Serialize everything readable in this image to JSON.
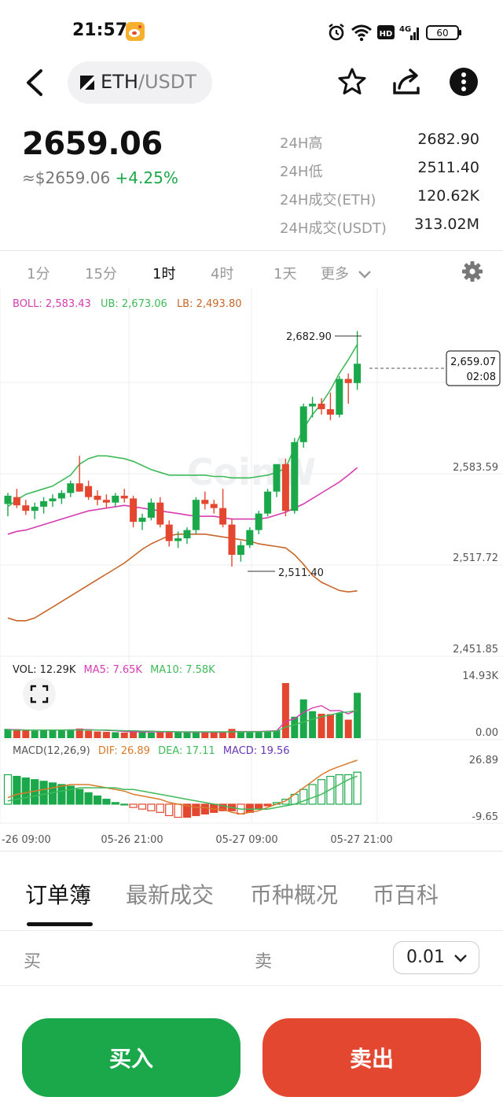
{
  "status_bar": {
    "time": "21:57",
    "battery": "60",
    "network": "4G",
    "hd": "HD"
  },
  "header": {
    "pair_base": "ETH",
    "pair_quote": "/USDT",
    "icons": [
      "back-icon",
      "star-icon",
      "share-icon",
      "more-icon"
    ]
  },
  "ticker": {
    "price": "2659.06",
    "usd_price": "≈$2659.06",
    "change": "+4.25%",
    "stats": [
      {
        "label": "24H高",
        "value": "2682.90"
      },
      {
        "label": "24H低",
        "value": "2511.40"
      },
      {
        "label": "24H成交(ETH)",
        "value": "120.62K"
      },
      {
        "label": "24H成交(USDT)",
        "value": "313.02M"
      }
    ]
  },
  "timeframes": {
    "items": [
      "1分",
      "15分",
      "1时",
      "4时",
      "1天",
      "更多"
    ],
    "active": "1时"
  },
  "chart_data": {
    "type": "candlestick",
    "colors": {
      "up": "#1aa84a",
      "down": "#e4472f",
      "boll": "#d63cb0",
      "ub": "#3fba5a",
      "lb": "#c8662a",
      "dif": "#d97a2b",
      "dea": "#3fba5a",
      "macd": "#6a36b8"
    },
    "boll_label": "BOLL: 2,583.43",
    "ub_label": "UB: 2,673.06",
    "lb_label": "LB: 2,493.80",
    "high_marker": "2,682.90",
    "low_marker": "2,511.40",
    "last_price": "2,659.07",
    "countdown": "02:08",
    "price_ticks": [
      "2,583.59",
      "2,517.72",
      "2,451.85"
    ],
    "price_tick_values": [
      2583.59,
      2517.72,
      2451.85
    ],
    "vol_label": "VOL: 12.29K",
    "ma5_label": "MA5: 7.65K",
    "ma10_label": "MA10: 7.58K",
    "vol_ticks": [
      "14.93K",
      "0.00"
    ],
    "macd_label": "MACD(12,26,9)",
    "dif_label": "DIF: 26.89",
    "dea_label": "DEA: 17.11",
    "macd_val_label": "MACD: 19.56",
    "macd_ticks": [
      "26.89",
      "-9.65"
    ],
    "x_labels": [
      "-26 09:00",
      "05-26 21:00",
      "05-27 09:00",
      "05-27 21:00"
    ],
    "watermark": "CoinW",
    "candles": [
      {
        "o": 2557,
        "h": 2565,
        "l": 2548,
        "c": 2563
      },
      {
        "o": 2562,
        "h": 2568,
        "l": 2554,
        "c": 2556
      },
      {
        "o": 2556,
        "h": 2560,
        "l": 2549,
        "c": 2552
      },
      {
        "o": 2552,
        "h": 2558,
        "l": 2546,
        "c": 2555
      },
      {
        "o": 2555,
        "h": 2562,
        "l": 2550,
        "c": 2559
      },
      {
        "o": 2559,
        "h": 2564,
        "l": 2555,
        "c": 2561
      },
      {
        "o": 2561,
        "h": 2567,
        "l": 2557,
        "c": 2565
      },
      {
        "o": 2565,
        "h": 2574,
        "l": 2562,
        "c": 2572
      },
      {
        "o": 2572,
        "h": 2592,
        "l": 2566,
        "c": 2566
      },
      {
        "o": 2570,
        "h": 2574,
        "l": 2560,
        "c": 2562
      },
      {
        "o": 2563,
        "h": 2567,
        "l": 2556,
        "c": 2560
      },
      {
        "o": 2560,
        "h": 2564,
        "l": 2554,
        "c": 2558
      },
      {
        "o": 2558,
        "h": 2565,
        "l": 2555,
        "c": 2563
      },
      {
        "o": 2563,
        "h": 2568,
        "l": 2558,
        "c": 2561
      },
      {
        "o": 2561,
        "h": 2563,
        "l": 2540,
        "c": 2544
      },
      {
        "o": 2544,
        "h": 2550,
        "l": 2538,
        "c": 2547
      },
      {
        "o": 2547,
        "h": 2561,
        "l": 2545,
        "c": 2558
      },
      {
        "o": 2558,
        "h": 2562,
        "l": 2540,
        "c": 2542
      },
      {
        "o": 2542,
        "h": 2545,
        "l": 2526,
        "c": 2530
      },
      {
        "o": 2530,
        "h": 2537,
        "l": 2525,
        "c": 2532
      },
      {
        "o": 2532,
        "h": 2540,
        "l": 2528,
        "c": 2538
      },
      {
        "o": 2538,
        "h": 2562,
        "l": 2535,
        "c": 2560
      },
      {
        "o": 2560,
        "h": 2566,
        "l": 2553,
        "c": 2557
      },
      {
        "o": 2557,
        "h": 2560,
        "l": 2550,
        "c": 2554
      },
      {
        "o": 2554,
        "h": 2568,
        "l": 2540,
        "c": 2542
      },
      {
        "o": 2542,
        "h": 2546,
        "l": 2511.4,
        "c": 2520
      },
      {
        "o": 2520,
        "h": 2530,
        "l": 2515,
        "c": 2527
      },
      {
        "o": 2527,
        "h": 2540,
        "l": 2525,
        "c": 2538
      },
      {
        "o": 2538,
        "h": 2552,
        "l": 2535,
        "c": 2550
      },
      {
        "o": 2550,
        "h": 2568,
        "l": 2548,
        "c": 2566
      },
      {
        "o": 2566,
        "h": 2586,
        "l": 2562,
        "c": 2586
      },
      {
        "o": 2586,
        "h": 2590,
        "l": 2548,
        "c": 2552
      },
      {
        "o": 2552,
        "h": 2605,
        "l": 2550,
        "c": 2602
      },
      {
        "o": 2602,
        "h": 2630,
        "l": 2598,
        "c": 2628
      },
      {
        "o": 2628,
        "h": 2635,
        "l": 2620,
        "c": 2630
      },
      {
        "o": 2630,
        "h": 2634,
        "l": 2622,
        "c": 2626
      },
      {
        "o": 2626,
        "h": 2638,
        "l": 2618,
        "c": 2622
      },
      {
        "o": 2622,
        "h": 2650,
        "l": 2620,
        "c": 2648
      },
      {
        "o": 2648,
        "h": 2652,
        "l": 2630,
        "c": 2645
      },
      {
        "o": 2645,
        "h": 2682.9,
        "l": 2640,
        "c": 2659.07
      }
    ],
    "boll_mid": [
      2535,
      2537,
      2538,
      2540,
      2542,
      2544,
      2546,
      2548,
      2550,
      2552,
      2553,
      2554,
      2555,
      2556,
      2555,
      2554,
      2553,
      2552,
      2551,
      2550,
      2549,
      2548,
      2548,
      2548,
      2547,
      2546,
      2546,
      2546,
      2546,
      2547,
      2549,
      2551,
      2554,
      2557,
      2561,
      2565,
      2569,
      2573,
      2578,
      2583.43
    ],
    "boll_up": [
      2555,
      2560,
      2564,
      2566,
      2568,
      2570,
      2574,
      2578,
      2586,
      2590,
      2592,
      2592,
      2591,
      2590,
      2588,
      2585,
      2582,
      2580,
      2578,
      2578,
      2578,
      2578,
      2578,
      2577,
      2577,
      2576,
      2576,
      2576,
      2577,
      2578,
      2580,
      2583,
      2598,
      2612,
      2622,
      2630,
      2640,
      2652,
      2662,
      2673.06
    ],
    "boll_low": [
      2474,
      2472,
      2472,
      2474,
      2478,
      2482,
      2486,
      2490,
      2494,
      2498,
      2502,
      2506,
      2510,
      2514,
      2519,
      2524,
      2528,
      2531,
      2534,
      2535,
      2535,
      2535,
      2535,
      2534,
      2533,
      2532,
      2531,
      2530,
      2528,
      2527,
      2526,
      2525,
      2520,
      2513,
      2505,
      2500,
      2497,
      2494,
      2493,
      2493.8
    ],
    "volume": [
      2.5,
      2.4,
      2.2,
      2.0,
      2.1,
      2.3,
      2.2,
      2.4,
      2.6,
      2.0,
      1.8,
      1.7,
      1.6,
      1.5,
      1.9,
      1.8,
      1.5,
      1.7,
      1.8,
      1.6,
      1.5,
      1.7,
      1.6,
      1.5,
      1.6,
      2.5,
      1.6,
      1.6,
      1.7,
      1.9,
      2.1,
      14.93,
      5.8,
      10.5,
      7.3,
      6.6,
      6.5,
      6.8,
      5.0,
      12.29
    ],
    "vol_ma5": [
      2.3,
      2.3,
      2.2,
      2.2,
      2.2,
      2.2,
      2.2,
      2.2,
      2.3,
      2.3,
      2.2,
      2.1,
      2.0,
      1.8,
      1.7,
      1.7,
      1.7,
      1.7,
      1.7,
      1.7,
      1.6,
      1.6,
      1.6,
      1.6,
      1.6,
      1.8,
      1.8,
      1.8,
      1.8,
      1.9,
      2.0,
      4.5,
      5.3,
      7.0,
      8.2,
      8.8,
      7.4,
      7.5,
      6.6,
      7.65
    ],
    "vol_ma10": [
      2.2,
      2.2,
      2.2,
      2.2,
      2.2,
      2.2,
      2.2,
      2.2,
      2.2,
      2.2,
      2.2,
      2.2,
      2.1,
      2.0,
      2.0,
      1.9,
      1.9,
      1.8,
      1.8,
      1.7,
      1.7,
      1.7,
      1.7,
      1.7,
      1.7,
      1.7,
      1.7,
      1.7,
      1.7,
      1.8,
      1.9,
      3.0,
      3.6,
      4.4,
      5.1,
      5.8,
      6.3,
      6.9,
      7.1,
      7.58
    ],
    "macd_hist": [
      18,
      17,
      16,
      15,
      14,
      13,
      12,
      11,
      9,
      7,
      5,
      3,
      1,
      0,
      -2,
      -3,
      -4,
      -5,
      -7,
      -8,
      -8,
      -7,
      -6,
      -5,
      -4,
      -4,
      -6,
      -5,
      -3,
      -1,
      1,
      3,
      6,
      9,
      12,
      15,
      17,
      18,
      18,
      19.56
    ],
    "dif": [
      4,
      6,
      7,
      8,
      9,
      10,
      11,
      12,
      12,
      12,
      11,
      10,
      9,
      8,
      6,
      5,
      4,
      3,
      1,
      0,
      -1,
      -2,
      -2,
      -3,
      -3,
      -5,
      -6,
      -5,
      -4,
      -2,
      0,
      2,
      6,
      10,
      14,
      18,
      21,
      23,
      25,
      26.89
    ],
    "dea": [
      2,
      3,
      4,
      5,
      6,
      7,
      8,
      9,
      10,
      10,
      10,
      10,
      10,
      9,
      9,
      8,
      7,
      6,
      5,
      4,
      3,
      2,
      1,
      0,
      -1,
      -2,
      -3,
      -3,
      -3,
      -3,
      -2,
      -1,
      0,
      2,
      4,
      6,
      9,
      12,
      15,
      17.11
    ]
  },
  "bottom_tabs": {
    "items": [
      "订单簿",
      "最新成交",
      "币种概况",
      "币百科"
    ],
    "active": "订单簿"
  },
  "order_book": {
    "buy_label": "买",
    "sell_label": "卖",
    "depth": "0.01"
  },
  "actions": {
    "buy": "买入",
    "sell": "卖出"
  }
}
